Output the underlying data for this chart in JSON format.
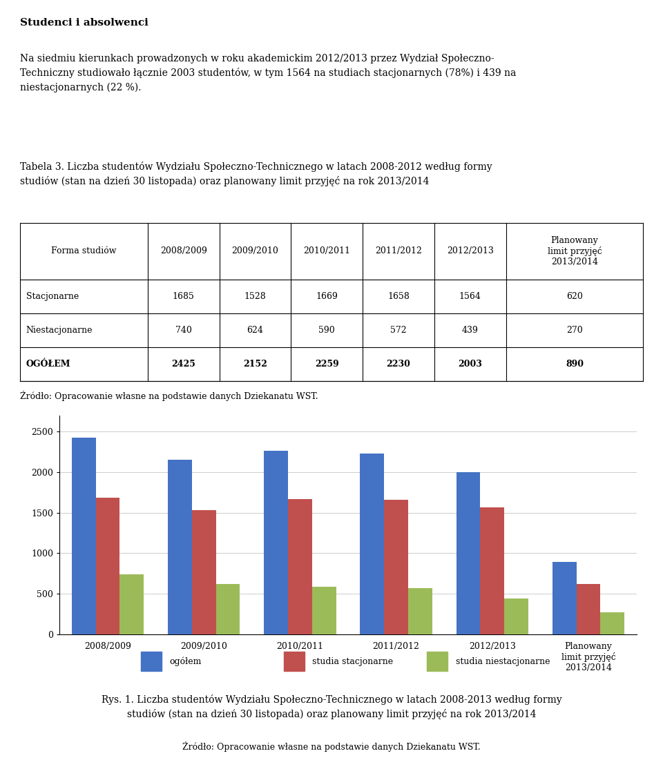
{
  "title_bold": "Studenci i absolwenci",
  "paragraph": "Na siedmiu kierunkach prowadzonych w roku akademickim 2012/2013 przez Wydział Społeczno-\nTechniczny studiowało łącznie 2003 studentów, w tym 1564 na studiach stacjonarnych (78%) i 439 na\nniestacjonarnych (22 %).",
  "table_title": "Tabela 3. Liczba studentów Wydziału Społeczno-Technicznego w latach 2008-2012 według formy\nstudiów (stan na dzień 30 listopada) oraz planowany limit przyjęć na rok 2013/2014",
  "table_headers": [
    "Forma studiów",
    "2008/2009",
    "2009/2010",
    "2010/2011",
    "2011/2012",
    "2012/2013",
    "Planowany\nlimit przyjęć\n2013/2014"
  ],
  "table_rows": [
    [
      "Stacjonarne",
      "1685",
      "1528",
      "1669",
      "1658",
      "1564",
      "620"
    ],
    [
      "Niestacjonarne",
      "740",
      "624",
      "590",
      "572",
      "439",
      "270"
    ],
    [
      "OGÓŁEM",
      "2425",
      "2152",
      "2259",
      "2230",
      "2003",
      "890"
    ]
  ],
  "table_source": "Źródło: Opracowanie własne na podstawie danych Dziekanatu WST.",
  "categories": [
    "2008/2009",
    "2009/2010",
    "2010/2011",
    "2011/2012",
    "2012/2013",
    "Planowany\nlimit przyjęć\n2013/2014"
  ],
  "ogolem": [
    2425,
    2152,
    2259,
    2230,
    2003,
    890
  ],
  "stacjonarne": [
    1685,
    1528,
    1669,
    1658,
    1564,
    620
  ],
  "niestacjonarne": [
    740,
    624,
    590,
    572,
    439,
    270
  ],
  "color_blue": "#4472C4",
  "color_red": "#C0504D",
  "color_green": "#9BBB59",
  "bar_width": 0.25,
  "ylim": [
    0,
    2700
  ],
  "yticks": [
    0,
    500,
    1000,
    1500,
    2000,
    2500
  ],
  "legend_labels": [
    "ogółem",
    "studia stacjonarne",
    "studia niestacjonarne"
  ],
  "chart_source": "Źródło: Opracowanie własne na podstawie danych Dziekanatu WST.",
  "fig_caption": "Rys. 1. Liczba studentów Wydziału Społeczno-Technicznego w latach 2008-2013 według formy\nstudiów (stan na dzień 30 listopada) oraz planowany limit przyjęć na rok 2013/2014"
}
